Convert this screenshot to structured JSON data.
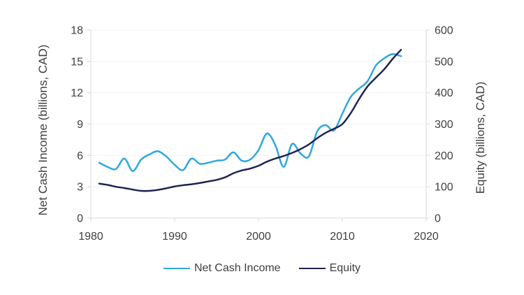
{
  "chart_data": {
    "type": "line",
    "smooth": true,
    "grid": "very-faint-horizontal",
    "x": [
      1981,
      1982,
      1983,
      1984,
      1985,
      1986,
      1987,
      1988,
      1989,
      1990,
      1991,
      1992,
      1993,
      1994,
      1995,
      1996,
      1997,
      1998,
      1999,
      2000,
      2001,
      2002,
      2003,
      2004,
      2005,
      2006,
      2007,
      2008,
      2009,
      2010,
      2011,
      2012,
      2013,
      2014,
      2015,
      2016,
      2017
    ],
    "series": [
      {
        "name": "Net Cash Income",
        "axis": "left",
        "color": "#2FA8DF",
        "values": [
          5.3,
          4.9,
          4.7,
          5.7,
          4.5,
          5.6,
          6.1,
          6.4,
          5.9,
          5.1,
          4.6,
          5.7,
          5.2,
          5.3,
          5.5,
          5.6,
          6.3,
          5.5,
          5.6,
          6.5,
          8.1,
          7.0,
          4.9,
          7.1,
          6.2,
          5.9,
          8.3,
          8.9,
          8.4,
          10.0,
          11.6,
          12.4,
          13.1,
          14.6,
          15.3,
          15.7,
          15.5
        ]
      },
      {
        "name": "Equity",
        "axis": "right",
        "color": "#1F2453",
        "values": [
          110,
          106,
          100,
          96,
          91,
          87,
          87,
          90,
          95,
          101,
          105,
          108,
          112,
          117,
          122,
          130,
          143,
          152,
          158,
          167,
          180,
          190,
          198,
          208,
          220,
          235,
          255,
          272,
          285,
          300,
          335,
          380,
          420,
          448,
          475,
          508,
          537
        ]
      }
    ],
    "left_axis": {
      "label": "Net Cash Income (billions, CAD)",
      "ticks": [
        0,
        3,
        6,
        9,
        12,
        15,
        18
      ],
      "range": [
        0,
        18
      ]
    },
    "right_axis": {
      "label": "Equity (billions, CAD)",
      "ticks": [
        0,
        100,
        200,
        300,
        400,
        500,
        600
      ],
      "range": [
        0,
        600
      ]
    },
    "x_axis": {
      "ticks": [
        1980,
        1990,
        2000,
        2010,
        2020
      ],
      "range": [
        1980,
        2020
      ]
    },
    "legend_position": "bottom",
    "axis_color": "#D9D9D9",
    "gridline_color": "#F2F2F2",
    "text_color": "#404040"
  }
}
